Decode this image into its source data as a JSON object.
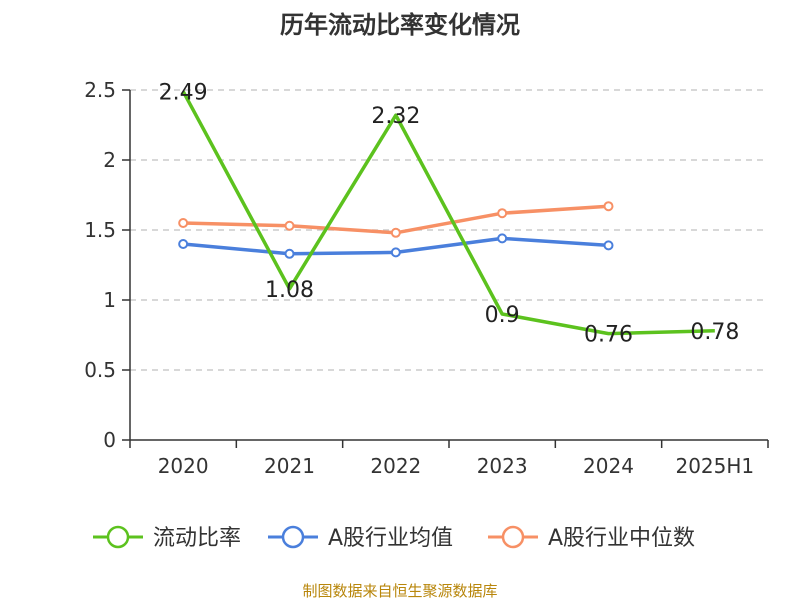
{
  "chart_data": {
    "type": "line",
    "title": "历年流动比率变化情况",
    "categories": [
      "2020",
      "2021",
      "2022",
      "2023",
      "2024",
      "2025H1"
    ],
    "ylim": [
      0,
      2.5
    ],
    "yticks": [
      "0",
      "0.5",
      "1",
      "1.5",
      "2",
      "2.5"
    ],
    "grid": true,
    "legend_position": "bottom",
    "series": [
      {
        "name": "流动比率",
        "color": "#5cc21e",
        "values": [
          2.49,
          1.08,
          2.32,
          0.9,
          0.76,
          0.78
        ],
        "labels": [
          "2.49",
          "1.08",
          "2.32",
          "0.9",
          "0.76",
          "0.78"
        ]
      },
      {
        "name": "A股行业均值",
        "color": "#4a7fdc",
        "values": [
          1.4,
          1.33,
          1.34,
          1.44,
          1.39,
          null
        ]
      },
      {
        "name": "A股行业中位数",
        "color": "#f79065",
        "values": [
          1.55,
          1.53,
          1.48,
          1.62,
          1.67,
          null
        ]
      }
    ],
    "source": "制图数据来自恒生聚源数据库"
  }
}
